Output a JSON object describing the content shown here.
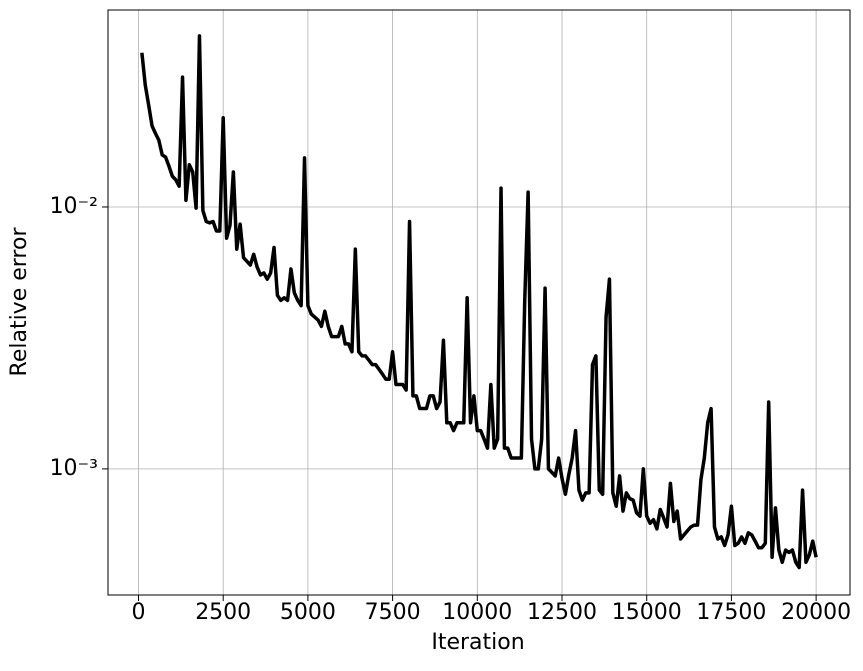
{
  "chart_data": {
    "type": "line",
    "xlabel": "Iteration",
    "ylabel": "Relative error",
    "log_y": true,
    "grid": true,
    "xlim": [
      -900,
      21000
    ],
    "xticks": [
      0,
      2500,
      5000,
      7500,
      10000,
      12500,
      15000,
      17500,
      20000
    ],
    "ylim": [
      0.00033,
      0.0565
    ],
    "yticks": [
      {
        "value": 0.001,
        "label": "10⁻³"
      },
      {
        "value": 0.01,
        "label": "10⁻²"
      }
    ],
    "x": [
      100,
      200,
      300,
      400,
      500,
      600,
      700,
      800,
      900,
      1000,
      1100,
      1200,
      1300,
      1400,
      1500,
      1600,
      1700,
      1800,
      1900,
      2000,
      2100,
      2200,
      2300,
      2400,
      2500,
      2600,
      2700,
      2800,
      2900,
      3000,
      3100,
      3200,
      3300,
      3400,
      3500,
      3600,
      3700,
      3800,
      3900,
      4000,
      4100,
      4200,
      4300,
      4400,
      4500,
      4600,
      4700,
      4800,
      4900,
      5000,
      5100,
      5200,
      5300,
      5400,
      5500,
      5600,
      5700,
      5800,
      5900,
      6000,
      6100,
      6200,
      6300,
      6400,
      6500,
      6600,
      6700,
      6800,
      6900,
      7000,
      7100,
      7200,
      7300,
      7400,
      7500,
      7600,
      7700,
      7800,
      7900,
      8000,
      8100,
      8200,
      8300,
      8400,
      8500,
      8600,
      8700,
      8800,
      8900,
      9000,
      9100,
      9200,
      9300,
      9400,
      9500,
      9600,
      9700,
      9800,
      9900,
      10000,
      10100,
      10200,
      10300,
      10400,
      10500,
      10600,
      10700,
      10800,
      10900,
      11000,
      11100,
      11200,
      11300,
      11400,
      11500,
      11600,
      11700,
      11800,
      11900,
      12000,
      12100,
      12200,
      12300,
      12400,
      12500,
      12600,
      12700,
      12800,
      12900,
      13000,
      13100,
      13200,
      13300,
      13400,
      13500,
      13600,
      13700,
      13800,
      13900,
      14000,
      14100,
      14200,
      14300,
      14400,
      14500,
      14600,
      14700,
      14800,
      14900,
      15000,
      15100,
      15200,
      15300,
      15400,
      15500,
      15600,
      15700,
      15800,
      15900,
      16000,
      16100,
      16200,
      16300,
      16400,
      16500,
      16600,
      16700,
      16800,
      16900,
      17000,
      17100,
      17200,
      17300,
      17400,
      17500,
      17600,
      17700,
      17800,
      17900,
      18000,
      18100,
      18200,
      18300,
      18400,
      18500,
      18600,
      18700,
      18800,
      18900,
      19000,
      19100,
      19200,
      19300,
      19400,
      19500,
      19600,
      19700,
      19800,
      19900,
      20000
    ],
    "series": [
      {
        "color": "#000000",
        "values": [
          0.0388,
          0.0292,
          0.0245,
          0.0204,
          0.0191,
          0.018,
          0.0158,
          0.0155,
          0.0143,
          0.0131,
          0.0127,
          0.012,
          0.0313,
          0.0106,
          0.0145,
          0.0136,
          0.0099,
          0.045,
          0.0097,
          0.0088,
          0.0087,
          0.0088,
          0.0081,
          0.0081,
          0.0219,
          0.0076,
          0.0085,
          0.0136,
          0.0069,
          0.0086,
          0.0064,
          0.0062,
          0.006,
          0.0066,
          0.0059,
          0.0055,
          0.0056,
          0.0053,
          0.0056,
          0.007,
          0.0046,
          0.0044,
          0.0045,
          0.0044,
          0.0058,
          0.0047,
          0.0044,
          0.0042,
          0.0154,
          0.0042,
          0.0039,
          0.0038,
          0.0037,
          0.0035,
          0.004,
          0.0035,
          0.0032,
          0.0032,
          0.0032,
          0.0035,
          0.003,
          0.003,
          0.0028,
          0.0069,
          0.0028,
          0.0027,
          0.0027,
          0.0026,
          0.0025,
          0.0025,
          0.0024,
          0.0023,
          0.0022,
          0.0022,
          0.0028,
          0.0021,
          0.0021,
          0.0021,
          0.002,
          0.0088,
          0.0019,
          0.0019,
          0.0017,
          0.0017,
          0.0017,
          0.0019,
          0.0019,
          0.0017,
          0.0018,
          0.0031,
          0.0015,
          0.0015,
          0.0014,
          0.0015,
          0.0015,
          0.0015,
          0.0045,
          0.0015,
          0.0019,
          0.0014,
          0.0014,
          0.0013,
          0.0012,
          0.0021,
          0.0012,
          0.0013,
          0.0118,
          0.0012,
          0.0012,
          0.0011,
          0.0011,
          0.0011,
          0.0011,
          0.0044,
          0.0114,
          0.0013,
          0.001,
          0.001,
          0.0013,
          0.0049,
          0.001,
          0.00097,
          0.00094,
          0.0011,
          0.00092,
          0.0008,
          0.00095,
          0.0011,
          0.0014,
          0.00083,
          0.00076,
          0.00081,
          0.00081,
          0.0025,
          0.0027,
          0.00083,
          0.0008,
          0.0038,
          0.0053,
          0.00081,
          0.00072,
          0.00094,
          0.00069,
          0.00081,
          0.00077,
          0.00076,
          0.00068,
          0.00066,
          0.001,
          0.00066,
          0.00062,
          0.00064,
          0.00059,
          0.0007,
          0.00065,
          0.0006,
          0.00088,
          0.00063,
          0.00069,
          0.00054,
          0.00056,
          0.00058,
          0.0006,
          0.00061,
          0.00061,
          0.00091,
          0.0011,
          0.0015,
          0.0017,
          0.0006,
          0.00054,
          0.00055,
          0.00051,
          0.00056,
          0.00072,
          0.00051,
          0.00052,
          0.00055,
          0.00052,
          0.00057,
          0.00056,
          0.00053,
          0.0005,
          0.0005,
          0.00052,
          0.0018,
          0.00046,
          0.00071,
          0.00049,
          0.00044,
          0.00049,
          0.00048,
          0.00049,
          0.00044,
          0.00042,
          0.00083,
          0.00044,
          0.00047,
          0.00053,
          0.00046
        ]
      }
    ]
  }
}
